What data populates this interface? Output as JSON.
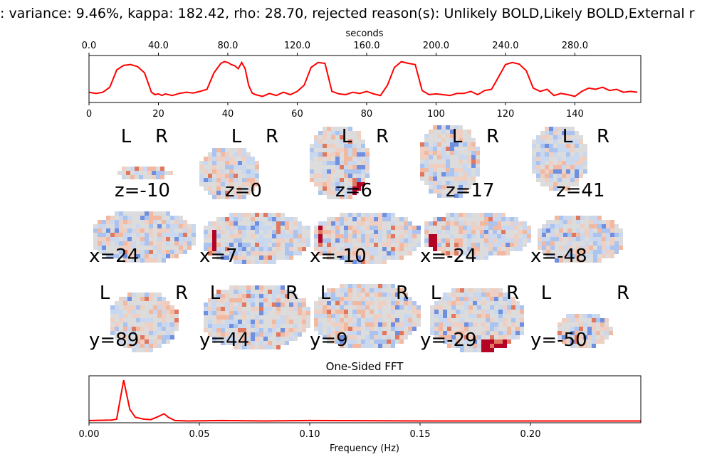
{
  "title": ": variance: 9.46%, kappa: 182.42, rho: 28.70, rejected reason(s): Unlikely BOLD,Likely BOLD,External r",
  "colors": {
    "series": "#ff0000",
    "positive": "#b40426",
    "negative": "#3b4cc0",
    "neutral": "#dddddd"
  },
  "chart_data": [
    {
      "type": "line",
      "name": "timeseries",
      "x_top_label": "seconds",
      "x_top_ticks": [
        "0.0",
        "40.0",
        "80.0",
        "120.0",
        "160.0",
        "200.0",
        "240.0",
        "280.0"
      ],
      "x_top_tick_values": [
        0,
        40,
        80,
        120,
        160,
        200,
        240,
        280
      ],
      "x_bottom_ticks": [
        "0",
        "20",
        "40",
        "60",
        "80",
        "100",
        "120",
        "140"
      ],
      "x_bottom_tick_values": [
        0,
        20,
        40,
        60,
        80,
        100,
        120,
        140
      ],
      "xlim": [
        0,
        159
      ],
      "ylim": [
        0,
        1
      ],
      "x": [
        0,
        2,
        4,
        6,
        8,
        10,
        12,
        14,
        16,
        18,
        19,
        20,
        21,
        22,
        24,
        26,
        28,
        30,
        32,
        34,
        36,
        38,
        39,
        40,
        41,
        42,
        43,
        44,
        45,
        46,
        47,
        48,
        50,
        52,
        54,
        56,
        58,
        60,
        62,
        64,
        66,
        68,
        70,
        72,
        74,
        76,
        78,
        80,
        82,
        84,
        86,
        88,
        90,
        92,
        94,
        96,
        98,
        100,
        102,
        104,
        106,
        108,
        110,
        112,
        114,
        116,
        118,
        120,
        122,
        124,
        126,
        128,
        130,
        132,
        134,
        136,
        138,
        140,
        142,
        144,
        146,
        148,
        150,
        152,
        154,
        156,
        158
      ],
      "y": [
        0.18,
        0.15,
        0.18,
        0.3,
        0.72,
        0.83,
        0.85,
        0.8,
        0.65,
        0.18,
        0.12,
        0.14,
        0.1,
        0.14,
        0.1,
        0.15,
        0.18,
        0.16,
        0.2,
        0.25,
        0.65,
        0.88,
        0.92,
        0.9,
        0.85,
        0.82,
        0.75,
        0.9,
        0.75,
        0.35,
        0.16,
        0.12,
        0.08,
        0.15,
        0.1,
        0.18,
        0.12,
        0.2,
        0.35,
        0.78,
        0.9,
        0.88,
        0.2,
        0.14,
        0.12,
        0.18,
        0.15,
        0.2,
        0.14,
        0.1,
        0.35,
        0.78,
        0.92,
        0.88,
        0.85,
        0.22,
        0.12,
        0.14,
        0.12,
        0.1,
        0.15,
        0.15,
        0.2,
        0.12,
        0.22,
        0.25,
        0.55,
        0.85,
        0.9,
        0.86,
        0.7,
        0.28,
        0.2,
        0.25,
        0.1,
        0.15,
        0.12,
        0.08,
        0.2,
        0.28,
        0.25,
        0.3,
        0.22,
        0.25,
        0.18,
        0.2,
        0.18
      ]
    },
    {
      "type": "line",
      "name": "fft",
      "title": "One-Sided FFT",
      "xlabel": "Frequency (Hz)",
      "x_ticks": [
        "0.00",
        "0.05",
        "0.10",
        "0.15",
        "0.20"
      ],
      "x_tick_values": [
        0,
        0.05,
        0.1,
        0.15,
        0.2
      ],
      "xlim": [
        0,
        0.25
      ],
      "ylim": [
        0,
        1
      ],
      "x": [
        0,
        0.01,
        0.0125,
        0.0157,
        0.0185,
        0.021,
        0.025,
        0.028,
        0.031,
        0.034,
        0.036,
        0.039,
        0.045,
        0.06,
        0.08,
        0.1,
        0.15,
        0.2,
        0.25
      ],
      "y": [
        0.05,
        0.06,
        0.08,
        0.95,
        0.3,
        0.12,
        0.08,
        0.07,
        0.13,
        0.2,
        0.12,
        0.05,
        0.04,
        0.05,
        0.04,
        0.05,
        0.04,
        0.04,
        0.04
      ]
    }
  ],
  "brain_slices": {
    "rows": [
      [
        {
          "label": "z=-10",
          "show_lr": true
        },
        {
          "label": "z=0",
          "show_lr": true
        },
        {
          "label": "z=6",
          "show_lr": true
        },
        {
          "label": "z=17",
          "show_lr": true
        },
        {
          "label": "z=41",
          "show_lr": true
        }
      ],
      [
        {
          "label": "x=24",
          "show_lr": false
        },
        {
          "label": "x=7",
          "show_lr": false
        },
        {
          "label": "x=-10",
          "show_lr": false
        },
        {
          "label": "x=-24",
          "show_lr": false
        },
        {
          "label": "x=-48",
          "show_lr": false
        }
      ],
      [
        {
          "label": "y=89",
          "show_lr": true
        },
        {
          "label": "y=44",
          "show_lr": true
        },
        {
          "label": "y=9",
          "show_lr": true
        },
        {
          "label": "y=-29",
          "show_lr": true
        },
        {
          "label": "y=-50",
          "show_lr": true
        }
      ]
    ],
    "left_mark": "L",
    "right_mark": "R"
  }
}
